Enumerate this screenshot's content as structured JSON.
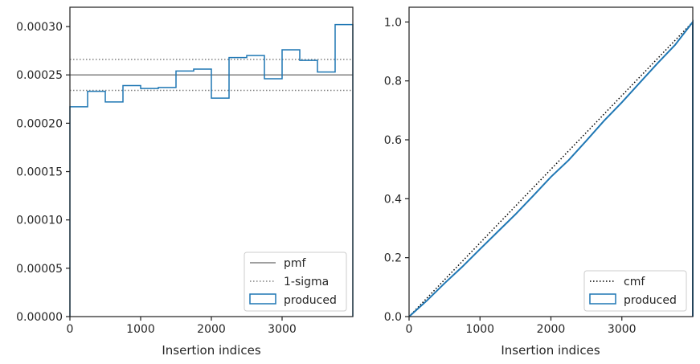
{
  "chart_data": [
    {
      "type": "step-histogram",
      "xlabel": "Insertion indices",
      "ylabel": "",
      "xlim": [
        0,
        4000
      ],
      "ylim": [
        0,
        0.00032
      ],
      "xticks": [
        0,
        1000,
        2000,
        3000
      ],
      "xtick_labels": [
        "0",
        "1000",
        "2000",
        "3000"
      ],
      "yticks": [
        0,
        5e-05,
        0.0001,
        0.00015,
        0.0002,
        0.00025,
        0.0003
      ],
      "ytick_labels": [
        "0.00000",
        "0.00005",
        "0.00010",
        "0.00015",
        "0.00020",
        "0.00025",
        "0.00030"
      ],
      "legend_placement": "lower-right",
      "pmf": {
        "name": "pmf",
        "value": 0.00025,
        "color": "#808080"
      },
      "sigma": {
        "name": "1-sigma",
        "values": [
          0.000234,
          0.000266
        ],
        "color": "#808080"
      },
      "histogram": {
        "name": "produced",
        "color": "#1f77b4",
        "bin_edges": [
          0,
          250,
          500,
          750,
          1000,
          1250,
          1500,
          1750,
          2000,
          2250,
          2500,
          2750,
          3000,
          3250,
          3500,
          3750,
          4000
        ],
        "values": [
          0.000217,
          0.000233,
          0.000222,
          0.000239,
          0.000236,
          0.000237,
          0.000254,
          0.000256,
          0.000226,
          0.000268,
          0.00027,
          0.000246,
          0.000276,
          0.000265,
          0.000253,
          0.000302
        ]
      }
    },
    {
      "type": "line",
      "xlabel": "Insertion indices",
      "ylabel": "",
      "xlim": [
        0,
        4000
      ],
      "ylim": [
        0,
        1.05
      ],
      "xticks": [
        0,
        1000,
        2000,
        3000
      ],
      "xtick_labels": [
        "0",
        "1000",
        "2000",
        "3000"
      ],
      "yticks": [
        0,
        0.2,
        0.4,
        0.6,
        0.8,
        1.0
      ],
      "ytick_labels": [
        "0.0",
        "0.2",
        "0.4",
        "0.6",
        "0.8",
        "1.0"
      ],
      "legend_placement": "lower-right",
      "cmf": {
        "name": "cmf",
        "x": [
          0,
          4000
        ],
        "y": [
          0,
          1
        ],
        "color": "#000000"
      },
      "produced": {
        "name": "produced",
        "color": "#1f77b4",
        "x": [
          0,
          250,
          500,
          750,
          1000,
          1250,
          1500,
          1750,
          2000,
          2250,
          2500,
          2750,
          3000,
          3250,
          3500,
          3750,
          4000
        ],
        "y": [
          0,
          0.054,
          0.113,
          0.169,
          0.229,
          0.288,
          0.347,
          0.41,
          0.474,
          0.531,
          0.597,
          0.665,
          0.727,
          0.793,
          0.859,
          0.922,
          1.0
        ]
      }
    }
  ]
}
